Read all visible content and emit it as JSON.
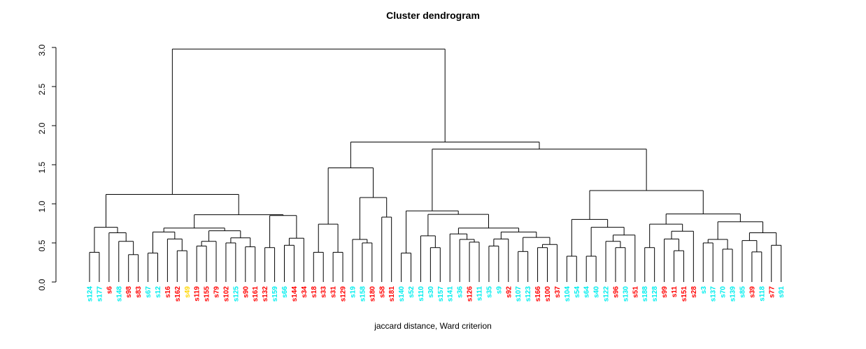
{
  "header": {
    "title": "Cluster dendrogram",
    "subtitle": "jaccard distance, Ward criterion"
  },
  "chart_data": {
    "type": "dendrogram",
    "title": "Cluster dendrogram",
    "xlabel": "jaccard distance, Ward criterion",
    "ylabel": "",
    "ylim": [
      0,
      3.05
    ],
    "grid": false,
    "ytick_labels": [
      "0.0",
      "0.5",
      "1.0",
      "1.5",
      "2.0",
      "2.5",
      "3.0"
    ],
    "yticks": [
      0,
      0.5,
      1.0,
      1.5,
      2.0,
      2.5,
      3.0
    ],
    "leaf_palette": {
      "cyan": "#00EEEE",
      "red": "#FF0000",
      "gold": "#FFD700"
    },
    "leaves": [
      {
        "label": "s124",
        "color": "cyan"
      },
      {
        "label": "s177",
        "color": "cyan"
      },
      {
        "label": "s6",
        "color": "red"
      },
      {
        "label": "s148",
        "color": "cyan"
      },
      {
        "label": "s98",
        "color": "red"
      },
      {
        "label": "s83",
        "color": "red"
      },
      {
        "label": "s67",
        "color": "cyan"
      },
      {
        "label": "s12",
        "color": "cyan"
      },
      {
        "label": "s16",
        "color": "red"
      },
      {
        "label": "s162",
        "color": "red"
      },
      {
        "label": "s49",
        "color": "gold"
      },
      {
        "label": "s119",
        "color": "red"
      },
      {
        "label": "s155",
        "color": "red"
      },
      {
        "label": "s79",
        "color": "red"
      },
      {
        "label": "s102",
        "color": "red"
      },
      {
        "label": "s125",
        "color": "cyan"
      },
      {
        "label": "s90",
        "color": "red"
      },
      {
        "label": "s161",
        "color": "red"
      },
      {
        "label": "s132",
        "color": "red"
      },
      {
        "label": "s159",
        "color": "cyan"
      },
      {
        "label": "s66",
        "color": "cyan"
      },
      {
        "label": "s144",
        "color": "red"
      },
      {
        "label": "s34",
        "color": "red"
      },
      {
        "label": "s18",
        "color": "red"
      },
      {
        "label": "s33",
        "color": "red"
      },
      {
        "label": "s31",
        "color": "red"
      },
      {
        "label": "s129",
        "color": "red"
      },
      {
        "label": "s19",
        "color": "cyan"
      },
      {
        "label": "s158",
        "color": "cyan"
      },
      {
        "label": "s180",
        "color": "red"
      },
      {
        "label": "s58",
        "color": "red"
      },
      {
        "label": "s181",
        "color": "red"
      },
      {
        "label": "s140",
        "color": "cyan"
      },
      {
        "label": "s52",
        "color": "cyan"
      },
      {
        "label": "s110",
        "color": "cyan"
      },
      {
        "label": "s30",
        "color": "cyan"
      },
      {
        "label": "s157",
        "color": "cyan"
      },
      {
        "label": "s141",
        "color": "cyan"
      },
      {
        "label": "s36",
        "color": "cyan"
      },
      {
        "label": "s126",
        "color": "red"
      },
      {
        "label": "s111",
        "color": "cyan"
      },
      {
        "label": "s35",
        "color": "cyan"
      },
      {
        "label": "s9",
        "color": "cyan"
      },
      {
        "label": "s92",
        "color": "red"
      },
      {
        "label": "s107",
        "color": "cyan"
      },
      {
        "label": "s123",
        "color": "cyan"
      },
      {
        "label": "s166",
        "color": "red"
      },
      {
        "label": "s100",
        "color": "red"
      },
      {
        "label": "s37",
        "color": "red"
      },
      {
        "label": "s104",
        "color": "cyan"
      },
      {
        "label": "s54",
        "color": "cyan"
      },
      {
        "label": "s64",
        "color": "cyan"
      },
      {
        "label": "s40",
        "color": "cyan"
      },
      {
        "label": "s122",
        "color": "cyan"
      },
      {
        "label": "s96",
        "color": "red"
      },
      {
        "label": "s130",
        "color": "cyan"
      },
      {
        "label": "s51",
        "color": "red"
      },
      {
        "label": "s188",
        "color": "cyan"
      },
      {
        "label": "s128",
        "color": "cyan"
      },
      {
        "label": "s99",
        "color": "red"
      },
      {
        "label": "s11",
        "color": "red"
      },
      {
        "label": "s151",
        "color": "red"
      },
      {
        "label": "s28",
        "color": "red"
      },
      {
        "label": "s3",
        "color": "cyan"
      },
      {
        "label": "s137",
        "color": "cyan"
      },
      {
        "label": "s70",
        "color": "cyan"
      },
      {
        "label": "s139",
        "color": "cyan"
      },
      {
        "label": "s85",
        "color": "cyan"
      },
      {
        "label": "s39",
        "color": "red"
      },
      {
        "label": "s118",
        "color": "cyan"
      },
      {
        "label": "s77",
        "color": "red"
      },
      {
        "label": "s91",
        "color": "cyan"
      }
    ],
    "tree": {
      "h": 2.98,
      "c": [
        {
          "h": 1.12,
          "c": [
            {
              "h": 0.7,
              "c": [
                {
                  "h": 0.38,
                  "c": [
                    0,
                    1
                  ]
                },
                {
                  "h": 0.63,
                  "c": [
                    2,
                    {
                      "h": 0.52,
                      "c": [
                        3,
                        {
                          "h": 0.35,
                          "c": [
                            4,
                            5
                          ]
                        }
                      ]
                    }
                  ]
                }
              ]
            },
            {
              "h": 0.86,
              "c": [
                {
                  "h": 0.69,
                  "c": [
                    {
                      "h": 0.64,
                      "c": [
                        {
                          "h": 0.37,
                          "c": [
                            6,
                            7
                          ]
                        },
                        {
                          "h": 0.55,
                          "c": [
                            8,
                            {
                              "h": 0.4,
                              "c": [
                                9,
                                10
                              ]
                            }
                          ]
                        }
                      ]
                    },
                    {
                      "h": 0.655,
                      "c": [
                        {
                          "h": 0.52,
                          "c": [
                            {
                              "h": 0.46,
                              "c": [
                                11,
                                12
                              ]
                            },
                            13
                          ]
                        },
                        {
                          "h": 0.565,
                          "c": [
                            {
                              "h": 0.5,
                              "c": [
                                14,
                                15
                              ]
                            },
                            {
                              "h": 0.45,
                              "c": [
                                16,
                                17
                              ]
                            }
                          ]
                        }
                      ]
                    }
                  ]
                },
                {
                  "h": 0.85,
                  "c": [
                    {
                      "h": 0.44,
                      "c": [
                        18,
                        19
                      ]
                    },
                    {
                      "h": 0.56,
                      "c": [
                        {
                          "h": 0.47,
                          "c": [
                            20,
                            21
                          ]
                        },
                        22
                      ]
                    }
                  ]
                }
              ]
            }
          ]
        },
        {
          "h": 1.79,
          "c": [
            {
              "h": 1.46,
              "c": [
                {
                  "h": 0.74,
                  "c": [
                    {
                      "h": 0.38,
                      "c": [
                        23,
                        24
                      ]
                    },
                    {
                      "h": 0.38,
                      "c": [
                        25,
                        26
                      ]
                    }
                  ]
                },
                {
                  "h": 1.08,
                  "c": [
                    {
                      "h": 0.545,
                      "c": [
                        27,
                        {
                          "h": 0.5,
                          "c": [
                            28,
                            29
                          ]
                        }
                      ]
                    },
                    {
                      "h": 0.83,
                      "c": [
                        30,
                        31
                      ]
                    }
                  ]
                }
              ]
            },
            {
              "h": 1.7,
              "c": [
                {
                  "h": 0.91,
                  "c": [
                    {
                      "h": 0.37,
                      "c": [
                        32,
                        33
                      ]
                    },
                    {
                      "h": 0.865,
                      "c": [
                        {
                          "h": 0.59,
                          "c": [
                            34,
                            {
                              "h": 0.44,
                              "c": [
                                35,
                                36
                              ]
                            }
                          ]
                        },
                        {
                          "h": 0.69,
                          "c": [
                            {
                              "h": 0.615,
                              "c": [
                                37,
                                {
                                  "h": 0.545,
                                  "c": [
                                    38,
                                    {
                                      "h": 0.51,
                                      "c": [
                                        39,
                                        40
                                      ]
                                    }
                                  ]
                                }
                              ]
                            },
                            {
                              "h": 0.64,
                              "c": [
                                {
                                  "h": 0.55,
                                  "c": [
                                    {
                                      "h": 0.46,
                                      "c": [
                                        41,
                                        42
                                      ]
                                    },
                                    43
                                  ]
                                },
                                {
                                  "h": 0.57,
                                  "c": [
                                    {
                                      "h": 0.39,
                                      "c": [
                                        44,
                                        45
                                      ]
                                    },
                                    {
                                      "h": 0.48,
                                      "c": [
                                        {
                                          "h": 0.44,
                                          "c": [
                                            46,
                                            47
                                          ]
                                        },
                                        48
                                      ]
                                    }
                                  ]
                                }
                              ]
                            }
                          ]
                        }
                      ]
                    }
                  ]
                },
                {
                  "h": 1.17,
                  "c": [
                    {
                      "h": 0.8,
                      "c": [
                        {
                          "h": 0.33,
                          "c": [
                            49,
                            50
                          ]
                        },
                        {
                          "h": 0.7,
                          "c": [
                            {
                              "h": 0.33,
                              "c": [
                                51,
                                52
                              ]
                            },
                            {
                              "h": 0.6,
                              "c": [
                                {
                                  "h": 0.52,
                                  "c": [
                                    53,
                                    {
                                      "h": 0.44,
                                      "c": [
                                        54,
                                        55
                                      ]
                                    }
                                  ]
                                },
                                56
                              ]
                            }
                          ]
                        }
                      ]
                    },
                    {
                      "h": 0.87,
                      "c": [
                        {
                          "h": 0.74,
                          "c": [
                            {
                              "h": 0.44,
                              "c": [
                                57,
                                58
                              ]
                            },
                            {
                              "h": 0.65,
                              "c": [
                                {
                                  "h": 0.55,
                                  "c": [
                                    59,
                                    {
                                      "h": 0.4,
                                      "c": [
                                        60,
                                        61
                                      ]
                                    }
                                  ]
                                },
                                62
                              ]
                            }
                          ]
                        },
                        {
                          "h": 0.77,
                          "c": [
                            {
                              "h": 0.545,
                              "c": [
                                {
                                  "h": 0.5,
                                  "c": [
                                    63,
                                    64
                                  ]
                                },
                                {
                                  "h": 0.42,
                                  "c": [
                                    65,
                                    66
                                  ]
                                }
                              ]
                            },
                            {
                              "h": 0.63,
                              "c": [
                                {
                                  "h": 0.53,
                                  "c": [
                                    67,
                                    {
                                      "h": 0.385,
                                      "c": [
                                        68,
                                        69
                                      ]
                                    }
                                  ]
                                },
                                {
                                  "h": 0.47,
                                  "c": [
                                    70,
                                    71
                                  ]
                                }
                              ]
                            }
                          ]
                        }
                      ]
                    }
                  ]
                }
              ]
            }
          ]
        }
      ]
    }
  }
}
